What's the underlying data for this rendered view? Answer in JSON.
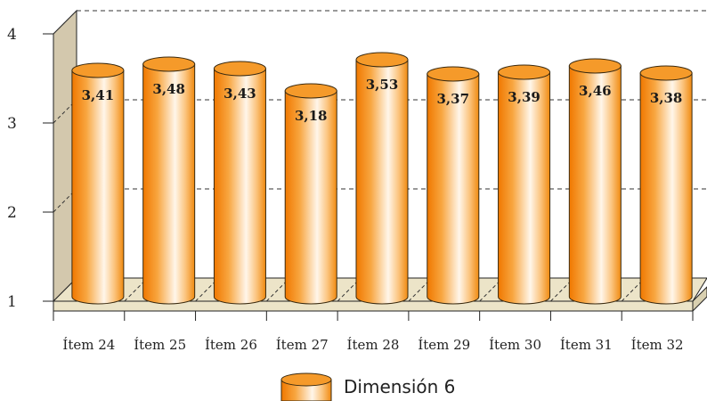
{
  "colors": {
    "bar_dark": "#f07800",
    "bar_mid": "#f8a640",
    "bar_light": "#fff6ea",
    "bar_top": "#f59a2a",
    "bar_stroke": "#3a2a10",
    "floor": "#ece4c8",
    "wall": "#d3c8ad",
    "gridline": "#333333"
  },
  "chart_data": {
    "type": "bar",
    "style": "3d-cylinder",
    "categories": [
      "Ítem 24",
      "Ítem 25",
      "Ítem 26",
      "Ítem 27",
      "Ítem 28",
      "Ítem 29",
      "Ítem 30",
      "Ítem 31",
      "Ítem 32"
    ],
    "series": [
      {
        "name": "Dimensión 6",
        "values": [
          3.41,
          3.48,
          3.43,
          3.18,
          3.53,
          3.37,
          3.39,
          3.46,
          3.38
        ],
        "value_labels": [
          "3,41",
          "3,48",
          "3,43",
          "3,18",
          "3,53",
          "3,37",
          "3,39",
          "3,46",
          "3,38"
        ]
      }
    ],
    "y_ticks": [
      "1",
      "2",
      "3",
      "4"
    ],
    "ylim": [
      1,
      4
    ],
    "grid": "dashed-horizontal",
    "legend_position": "bottom-center"
  }
}
